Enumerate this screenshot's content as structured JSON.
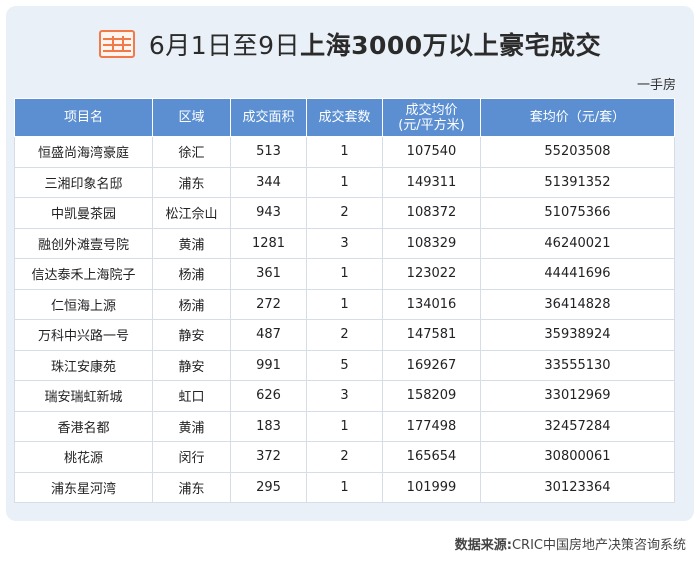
{
  "header": {
    "title_part1": "6月1日至9日",
    "title_part2": "上海3000万以上豪宅成交",
    "subtitle": "一手房"
  },
  "table": {
    "columns": [
      "项目名",
      "区域",
      "成交面积",
      "成交套数",
      "成交均价\n(元/平方米)",
      "套均价（元/套）"
    ],
    "rows": [
      [
        "恒盛尚海湾豪庭",
        "徐汇",
        "513",
        "1",
        "107540",
        "55203508"
      ],
      [
        "三湘印象名邸",
        "浦东",
        "344",
        "1",
        "149311",
        "51391352"
      ],
      [
        "中凯曼茶园",
        "松江佘山",
        "943",
        "2",
        "108372",
        "51075366"
      ],
      [
        "融创外滩壹号院",
        "黄浦",
        "1281",
        "3",
        "108329",
        "46240021"
      ],
      [
        "信达泰禾上海院子",
        "杨浦",
        "361",
        "1",
        "123022",
        "44441696"
      ],
      [
        "仁恒海上源",
        "杨浦",
        "272",
        "1",
        "134016",
        "36414828"
      ],
      [
        "万科中兴路一号",
        "静安",
        "487",
        "2",
        "147581",
        "35938924"
      ],
      [
        "珠江安康苑",
        "静安",
        "991",
        "5",
        "169267",
        "33555130"
      ],
      [
        "瑞安瑞虹新城",
        "虹口",
        "626",
        "3",
        "158209",
        "33012969"
      ],
      [
        "香港名都",
        "黄浦",
        "183",
        "1",
        "177498",
        "32457284"
      ],
      [
        "桃花源",
        "闵行",
        "372",
        "2",
        "165654",
        "30800061"
      ],
      [
        "浦东星河湾",
        "浦东",
        "295",
        "1",
        "101999",
        "30123364"
      ]
    ]
  },
  "footer": {
    "source_label": "数据来源:",
    "source_text": "CRIC中国房地产决策咨询系统"
  }
}
